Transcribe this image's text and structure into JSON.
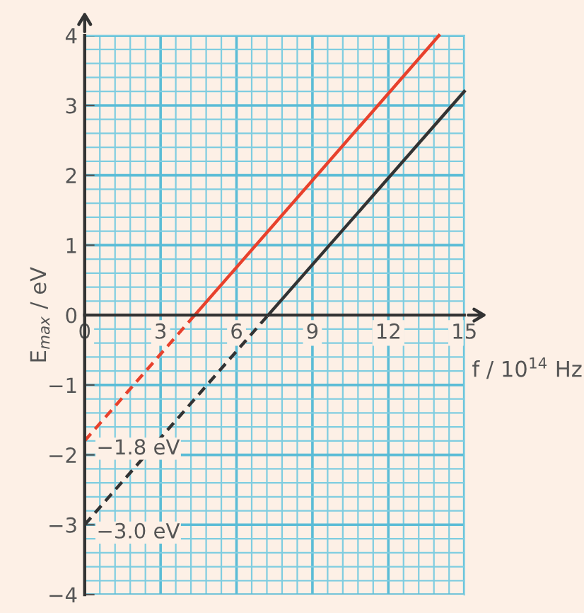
{
  "chart_data": {
    "type": "line",
    "xlabel": "f / 10$^{14}$ Hz",
    "ylabel": "E$_{max}$ / eV",
    "series": [
      {
        "x": [
          0,
          4.35
        ],
        "values": [
          -1.8,
          0
        ],
        "color": "#e8412c",
        "line_style": "dashed"
      },
      {
        "x": [
          4.35,
          14
        ],
        "values": [
          0,
          4
        ],
        "color": "#e8412c",
        "line_style": "solid"
      },
      {
        "x": [
          0,
          7.25
        ],
        "values": [
          -3.0,
          0
        ],
        "color": "#333333",
        "line_style": "dashed"
      },
      {
        "x": [
          7.25,
          15
        ],
        "values": [
          0,
          3.2
        ],
        "color": "#333333",
        "line_style": "solid"
      }
    ],
    "annotations": [
      {
        "text": "−1.8 eV",
        "x": 0,
        "y": -1.8
      },
      {
        "text": "−3.0 eV",
        "x": 0,
        "y": -3.0
      }
    ],
    "xlim": [
      0,
      15
    ],
    "xticks": [
      0,
      {
        "value": 0.6,
        "label": null
      },
      {
        "value": 1.2,
        "label": null
      },
      {
        "value": 1.8,
        "label": null
      },
      {
        "value": 2.4,
        "label": null
      },
      3,
      {
        "value": 3.6,
        "label": null
      },
      {
        "value": 4.2,
        "label": null
      },
      {
        "value": 4.8,
        "label": null
      },
      {
        "value": 5.4,
        "label": null
      },
      6,
      {
        "value": 6.6,
        "label": null
      },
      {
        "value": 7.2,
        "label": null
      },
      {
        "value": 7.8,
        "label": null
      },
      {
        "value": 8.4,
        "label": null
      },
      9,
      {
        "value": 9.6,
        "label": null
      },
      {
        "value": 10.2,
        "label": null
      },
      {
        "value": 10.8,
        "label": null
      },
      {
        "value": 11.4,
        "label": null
      },
      12,
      {
        "value": 12.6,
        "label": null
      },
      {
        "value": 13.2,
        "label": null
      },
      {
        "value": 13.8,
        "label": null
      },
      {
        "value": 14.4,
        "label": null
      },
      15
    ],
    "ylim": [
      -4,
      4
    ],
    "yticks": [
      {
        "value": -4,
        "label": "−4"
      },
      {
        "value": -3.8,
        "label": null
      },
      {
        "value": -3.6,
        "label": null
      },
      {
        "value": -3.4,
        "label": null
      },
      {
        "value": -3.2,
        "label": null
      },
      {
        "value": -3,
        "label": "−3"
      },
      {
        "value": -2.8,
        "label": null
      },
      {
        "value": -2.6,
        "label": null
      },
      {
        "value": -2.4,
        "label": null
      },
      {
        "value": -2.2,
        "label": null
      },
      {
        "value": -2,
        "label": "−2"
      },
      {
        "value": -1.8,
        "label": null
      },
      {
        "value": -1.6,
        "label": null
      },
      {
        "value": -1.4,
        "label": null
      },
      {
        "value": -1.2,
        "label": null
      },
      {
        "value": -1,
        "label": "−1"
      },
      {
        "value": -0.8,
        "label": null
      },
      {
        "value": -0.6,
        "label": null
      },
      {
        "value": -0.4,
        "label": null
      },
      {
        "value": -0.2,
        "label": null
      },
      0,
      {
        "value": 0.2,
        "label": null
      },
      {
        "value": 0.4,
        "label": null
      },
      {
        "value": 0.6,
        "label": null
      },
      {
        "value": 0.8,
        "label": null
      },
      1,
      {
        "value": 1.2,
        "label": null
      },
      {
        "value": 1.4,
        "label": null
      },
      {
        "value": 1.6,
        "label": null
      },
      {
        "value": 1.8,
        "label": null
      },
      2,
      {
        "value": 2.2,
        "label": null
      },
      {
        "value": 2.4,
        "label": null
      },
      {
        "value": 2.6,
        "label": null
      },
      {
        "value": 2.8,
        "label": null
      },
      3,
      {
        "value": 3.2,
        "label": null
      },
      {
        "value": 3.4,
        "label": null
      },
      {
        "value": 3.6,
        "label": null
      },
      {
        "value": 3.8,
        "label": null
      },
      4
    ],
    "grid": true,
    "marker": "none"
  }
}
